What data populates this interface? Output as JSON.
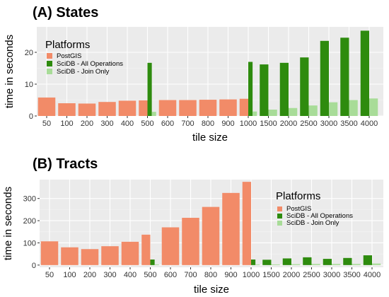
{
  "chart_data": [
    {
      "type": "bar",
      "title": "(A) States",
      "xlabel": "tile size",
      "ylabel": "time in seconds",
      "ylim": [
        0,
        28
      ],
      "yticks": [
        0,
        10,
        20
      ],
      "grid": true,
      "legend_position": "top-left",
      "legend_title": "Platforms",
      "categories": [
        "50",
        "100",
        "200",
        "300",
        "400",
        "500",
        "600",
        "700",
        "800",
        "900",
        "1000",
        "1500",
        "2000",
        "2500",
        "3000",
        "3500",
        "4000"
      ],
      "series": [
        {
          "name": "PostGIS",
          "color": "#F28B68",
          "values": [
            5.8,
            4.0,
            3.9,
            4.4,
            4.8,
            4.9,
            5.0,
            5.0,
            5.1,
            5.2,
            5.4,
            null,
            null,
            null,
            null,
            null,
            null
          ]
        },
        {
          "name": "SciDB - All Operations",
          "color": "#2E8B0E",
          "values": [
            null,
            null,
            null,
            null,
            null,
            16.7,
            null,
            null,
            null,
            null,
            17.0,
            16.2,
            16.7,
            18.4,
            23.6,
            24.6,
            26.8
          ]
        },
        {
          "name": "SciDB - Join Only",
          "color": "#A8DC98",
          "values": [
            null,
            null,
            null,
            null,
            null,
            1.3,
            null,
            null,
            null,
            null,
            1.4,
            2.0,
            2.5,
            3.3,
            4.3,
            5.0,
            5.5
          ]
        }
      ]
    },
    {
      "type": "bar",
      "title": "(B) Tracts",
      "xlabel": "tile size",
      "ylabel": "time in seconds",
      "ylim": [
        -10,
        385
      ],
      "yticks": [
        0,
        100,
        200,
        300
      ],
      "grid": true,
      "legend_position": "right",
      "legend_title": "Platforms",
      "categories": [
        "50",
        "100",
        "200",
        "300",
        "400",
        "500",
        "600",
        "700",
        "800",
        "900",
        "1000",
        "1500",
        "2000",
        "2500",
        "3000",
        "3500",
        "4000"
      ],
      "series": [
        {
          "name": "PostGIS",
          "color": "#F28B68",
          "values": [
            107,
            80,
            72,
            85,
            105,
            137,
            170,
            213,
            262,
            325,
            375,
            null,
            null,
            null,
            null,
            null,
            null
          ]
        },
        {
          "name": "SciDB - All Operations",
          "color": "#2E8B0E",
          "values": [
            null,
            null,
            null,
            null,
            null,
            25,
            null,
            null,
            null,
            null,
            25,
            24,
            30,
            35,
            28,
            32,
            44
          ]
        },
        {
          "name": "SciDB - Join Only",
          "color": "#A8DC98",
          "values": [
            null,
            null,
            null,
            null,
            null,
            3,
            null,
            null,
            null,
            null,
            3,
            3,
            4,
            5,
            5,
            5,
            7
          ]
        }
      ]
    }
  ]
}
